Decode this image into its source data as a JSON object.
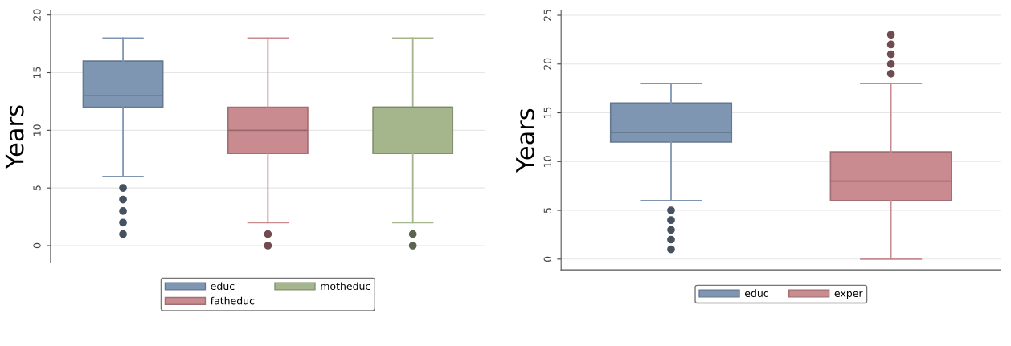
{
  "chart_data": [
    {
      "type": "box",
      "ylabel": "Years",
      "categories": [
        null,
        null,
        null
      ],
      "ylim": [
        -1.5,
        20.4
      ],
      "yticks": [
        0,
        5,
        10,
        15,
        20
      ],
      "grid": "y",
      "legend": "bottom",
      "series": [
        {
          "name": "educ",
          "color": "#7f96b3",
          "boxes": [
            {
              "low": 6,
              "q1": 12,
              "median": 13,
              "q3": 16,
              "high": 18,
              "outliers": [
                1,
                2,
                3,
                4,
                5
              ]
            },
            null,
            null
          ]
        },
        {
          "name": "fatheduc",
          "color": "#c98b90",
          "boxes": [
            null,
            {
              "low": 2,
              "q1": 8,
              "median": 10,
              "q3": 12,
              "high": 18,
              "outliers": [
                0,
                1
              ]
            },
            null
          ]
        },
        {
          "name": "motheduc",
          "color": "#a5b68c",
          "boxes": [
            null,
            null,
            {
              "low": 2,
              "q1": 8,
              "median": 12,
              "q3": 12,
              "high": 18,
              "outliers": [
                0,
                1
              ]
            }
          ]
        }
      ]
    },
    {
      "type": "box",
      "ylabel": "Years",
      "categories": [
        null,
        null
      ],
      "ylim": [
        -1.1,
        25.5
      ],
      "yticks": [
        0,
        5,
        10,
        15,
        20,
        25
      ],
      "grid": "y",
      "legend": "bottom",
      "series": [
        {
          "name": "educ",
          "color": "#7f96b3",
          "boxes": [
            {
              "low": 6,
              "q1": 12,
              "median": 13,
              "q3": 16,
              "high": 18,
              "outliers": [
                1,
                2,
                3,
                4,
                5
              ]
            },
            null
          ]
        },
        {
          "name": "exper",
          "color": "#c98b90",
          "boxes": [
            null,
            {
              "low": 0,
              "q1": 6,
              "median": 8,
              "q3": 11,
              "high": 18,
              "outliers": [
                19,
                20,
                21,
                22,
                23
              ]
            }
          ]
        }
      ]
    }
  ]
}
